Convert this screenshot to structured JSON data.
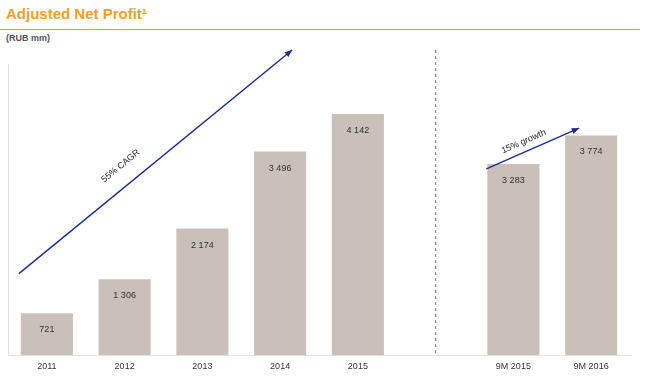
{
  "chart_data": {
    "type": "bar",
    "title": "Adjusted Net Profit¹",
    "subtitle": "(RUB mm)",
    "categories": [
      "2011",
      "2012",
      "2013",
      "2014",
      "2015",
      null,
      "9M 2015",
      "9M 2016"
    ],
    "values": [
      721,
      1306,
      2174,
      3496,
      4142,
      null,
      3283,
      3774
    ],
    "value_labels": [
      "721",
      "1 306",
      "2 174",
      "3 496",
      "4 142",
      null,
      "3 283",
      "3 774"
    ],
    "annotations": [
      "55% CAGR",
      "15% growth"
    ],
    "color": "#c9c0b9",
    "ylim": [
      0,
      5000
    ],
    "grid": false,
    "data_labels": true,
    "tick_labels": "x"
  }
}
